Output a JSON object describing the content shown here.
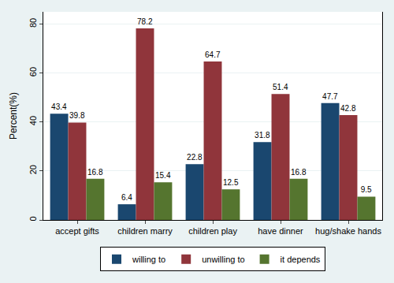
{
  "chart_data": {
    "type": "bar",
    "categories": [
      "accept gifts",
      "children marry",
      "children play",
      "have dinner",
      "hug/shake hands"
    ],
    "series": [
      {
        "name": "willing to",
        "color": "#1a476f",
        "values": [
          43.4,
          6.4,
          22.8,
          31.8,
          47.7
        ]
      },
      {
        "name": "unwilling to",
        "color": "#90353b",
        "values": [
          39.8,
          78.2,
          64.7,
          51.4,
          42.8
        ]
      },
      {
        "name": "it depends",
        "color": "#55752f",
        "values": [
          16.8,
          15.4,
          12.5,
          16.8,
          9.5
        ]
      }
    ],
    "y_label": "Percent(%)",
    "ylim": [
      0,
      85
    ],
    "yticks": [
      0,
      20,
      40,
      60,
      80
    ],
    "grid": true,
    "legend": "bottom",
    "data_labels": true
  }
}
